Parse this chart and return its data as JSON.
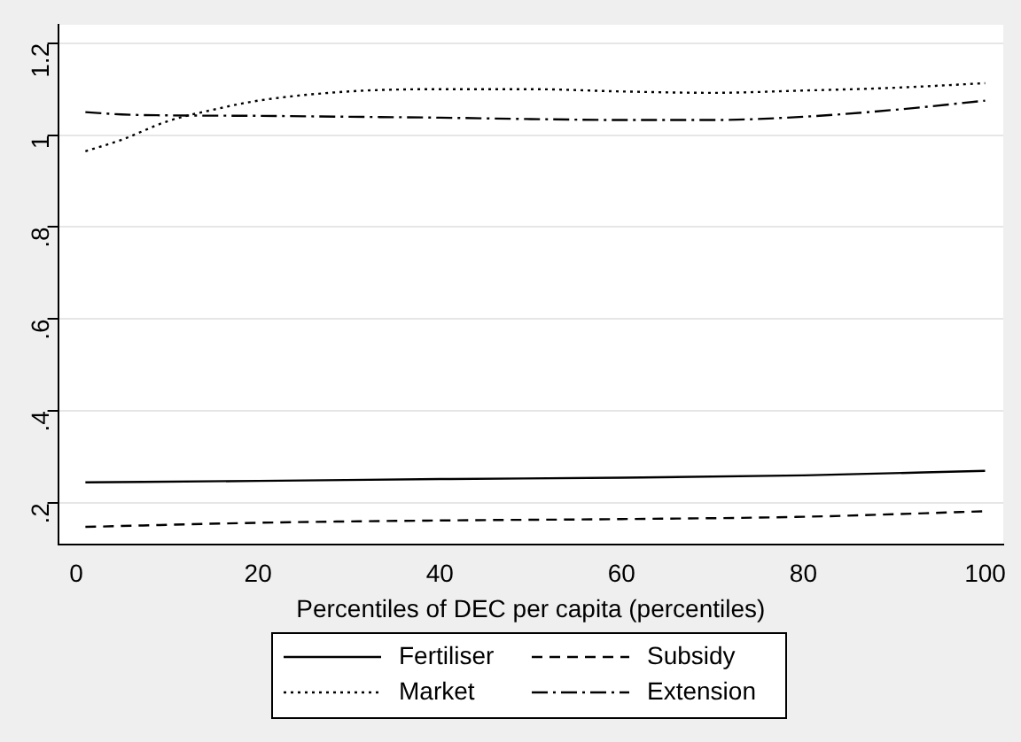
{
  "chart_data": {
    "type": "line",
    "xlabel": "Percentiles of DEC per capita (percentiles)",
    "xlim": [
      -2,
      102
    ],
    "xticks": [
      0,
      20,
      40,
      60,
      80,
      100
    ],
    "ylim": [
      0.11,
      1.24
    ],
    "yticks": [
      {
        "value": 0.2,
        "label": ".2"
      },
      {
        "value": 0.4,
        "label": ".4"
      },
      {
        "value": 0.6,
        "label": ".6"
      },
      {
        "value": 0.8,
        "label": ".8"
      },
      {
        "value": 1,
        "label": "1"
      },
      {
        "value": 1.2,
        "label": "1.2"
      }
    ],
    "grid": "y",
    "legend": "bottom",
    "marker": "none",
    "series": [
      {
        "name": "Fertiliser",
        "color": "#000000",
        "line_style": "solid",
        "x": [
          1,
          20,
          40,
          60,
          80,
          100
        ],
        "values": [
          0.245,
          0.248,
          0.252,
          0.255,
          0.26,
          0.27
        ]
      },
      {
        "name": "Subsidy",
        "color": "#000000",
        "line_style": "dashed",
        "x": [
          1,
          20,
          40,
          60,
          80,
          100
        ],
        "values": [
          0.148,
          0.157,
          0.162,
          0.165,
          0.17,
          0.182
        ]
      },
      {
        "name": "Market",
        "color": "#000000",
        "line_style": "dotted",
        "x": [
          1,
          5,
          10,
          15,
          20,
          30,
          40,
          50,
          60,
          70,
          80,
          90,
          100
        ],
        "values": [
          0.965,
          0.99,
          1.03,
          1.055,
          1.075,
          1.095,
          1.1,
          1.1,
          1.095,
          1.092,
          1.097,
          1.103,
          1.113
        ]
      },
      {
        "name": "Extension",
        "color": "#000000",
        "line_style": "dashdot",
        "x": [
          1,
          5,
          10,
          20,
          30,
          40,
          50,
          60,
          70,
          80,
          90,
          100
        ],
        "values": [
          1.05,
          1.045,
          1.043,
          1.042,
          1.04,
          1.038,
          1.035,
          1.033,
          1.033,
          1.04,
          1.055,
          1.075
        ]
      }
    ]
  }
}
